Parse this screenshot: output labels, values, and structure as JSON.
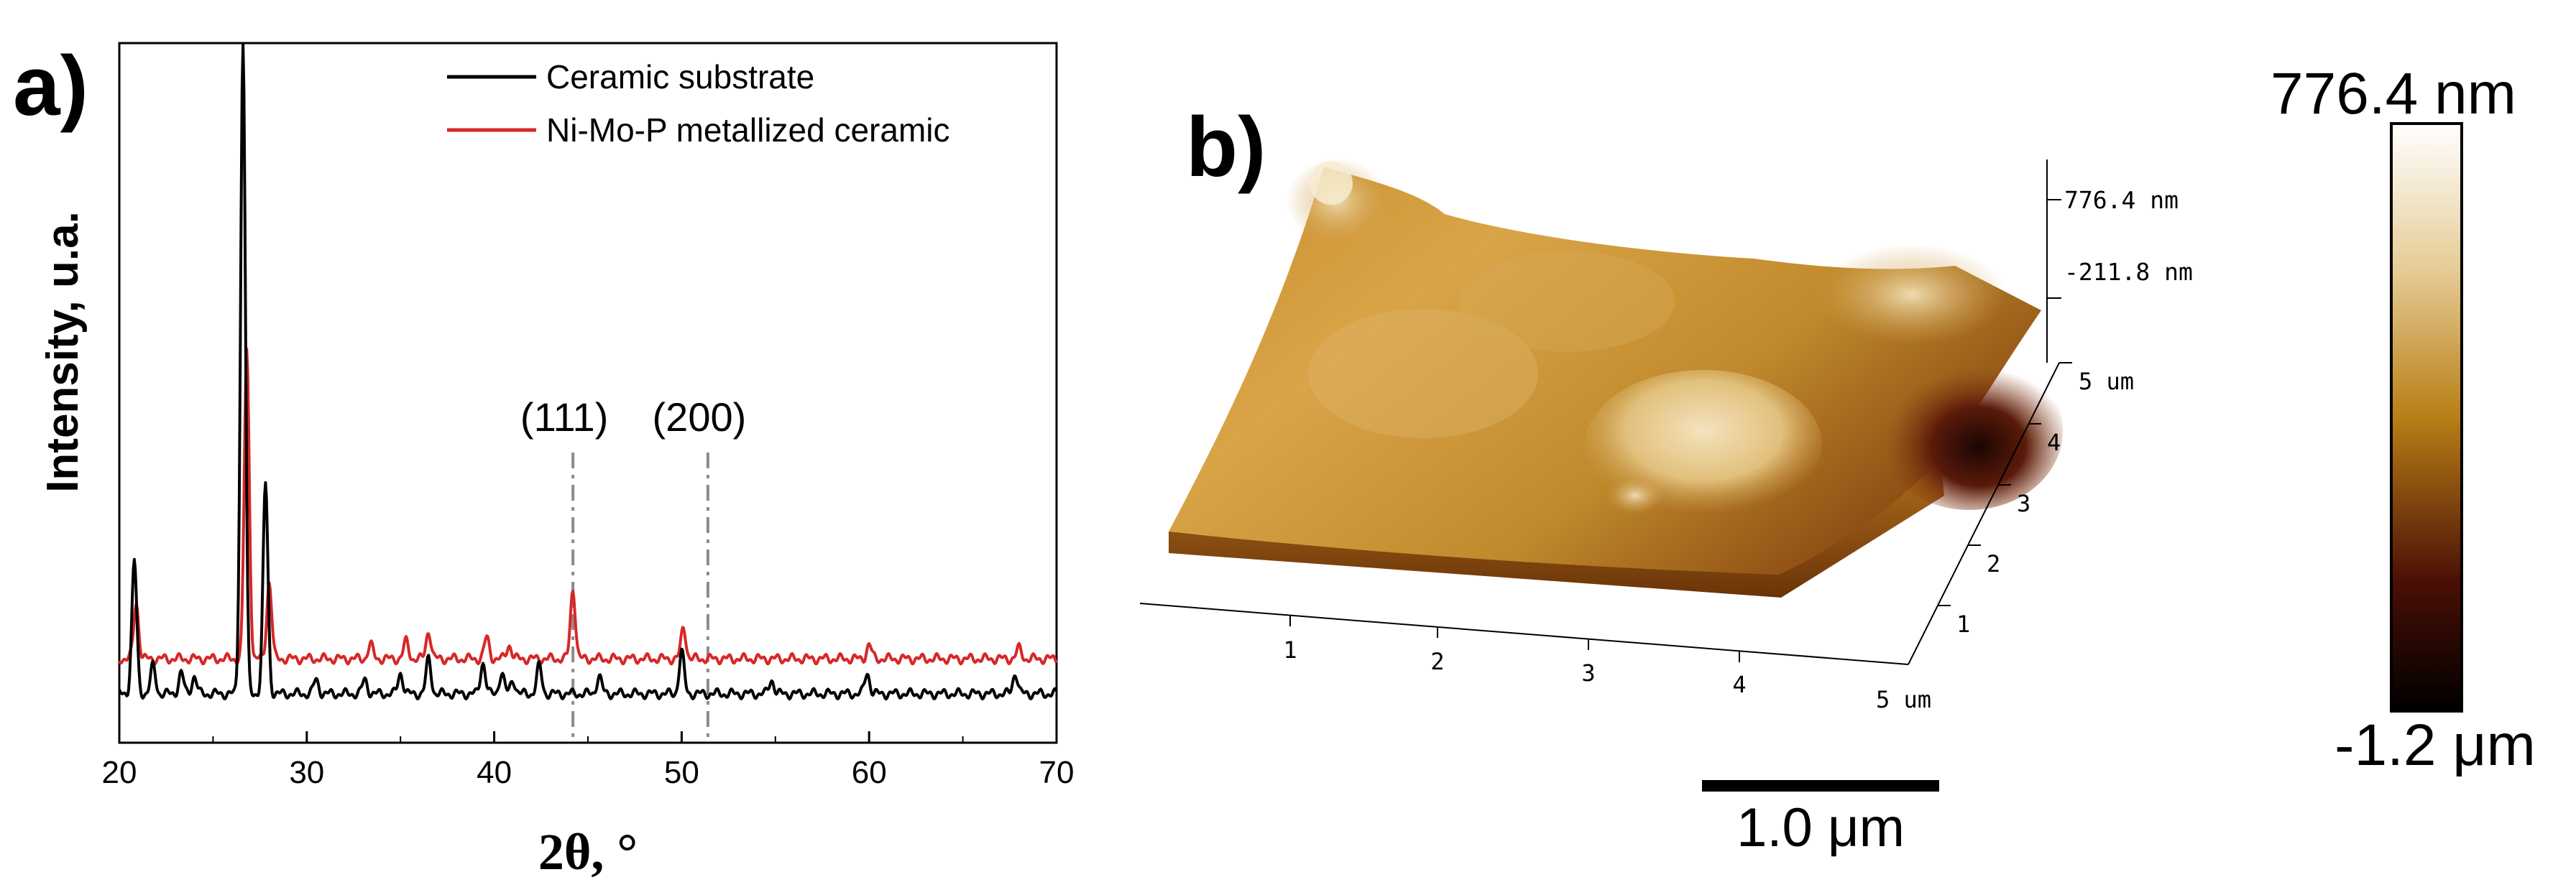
{
  "panel_a": {
    "panel_label": "a)",
    "chart_data": {
      "type": "line",
      "title": "",
      "xlabel": "2θ, °",
      "ylabel": "Intensity, u.a.",
      "xlim": [
        20,
        70
      ],
      "ylim": [
        0,
        100
      ],
      "x_ticks": [
        20,
        30,
        40,
        50,
        60,
        70
      ],
      "y_ticks_shown": false,
      "legend_position": "top-right",
      "series": [
        {
          "name": "Ceramic substrate",
          "color": "#000000",
          "baseline": 7,
          "peaks": [
            [
              20.8,
              19
            ],
            [
              21.8,
              4
            ],
            [
              23.3,
              3
            ],
            [
              24,
              2.5
            ],
            [
              26.6,
              93
            ],
            [
              27.8,
              30
            ],
            [
              30.5,
              2
            ],
            [
              33.1,
              2
            ],
            [
              35,
              3
            ],
            [
              36.5,
              5
            ],
            [
              39.4,
              4.5
            ],
            [
              40.4,
              3
            ],
            [
              41,
              2
            ],
            [
              42.4,
              4
            ],
            [
              45.6,
              2.5
            ],
            [
              50,
              6
            ],
            [
              54.8,
              2
            ],
            [
              59.9,
              3
            ],
            [
              67.8,
              3
            ]
          ]
        },
        {
          "name": "Ni-Mo-P metallized ceramic",
          "color": "#d62828",
          "baseline": 12,
          "peaks": [
            [
              20.9,
              8
            ],
            [
              26.8,
              44
            ],
            [
              28,
              11
            ],
            [
              33.4,
              2
            ],
            [
              35.3,
              2.5
            ],
            [
              36.5,
              4
            ],
            [
              39.6,
              3
            ],
            [
              40.8,
              2
            ],
            [
              44.2,
              10
            ],
            [
              50.1,
              4.5
            ],
            [
              60,
              2
            ],
            [
              68,
              1.5
            ]
          ]
        }
      ],
      "reference_lines": [
        {
          "label": "(111)",
          "x": 44.2
        },
        {
          "label": "(200)",
          "x": 51.4
        }
      ]
    }
  },
  "panel_b": {
    "panel_label": "b)",
    "z_max_label": "776.4 nm",
    "z_mid_label": "-211.8 nm",
    "y_axis_ticks": [
      "1",
      "2",
      "3",
      "4",
      "5 um"
    ],
    "x_axis_ticks": [
      "1",
      "2",
      "3",
      "4",
      "5 um"
    ],
    "scale_bar_label": "1.0 μm",
    "colorbar_max_label": "776.4 nm",
    "colorbar_min_label": "-1.2 μm",
    "colors": {
      "colorbar_top": "#ffffff",
      "colorbar_light": "#e6cc96",
      "colorbar_mid": "#b87f16",
      "colorbar_dark": "#4a0f06",
      "colorbar_bottom": "#000000"
    }
  }
}
